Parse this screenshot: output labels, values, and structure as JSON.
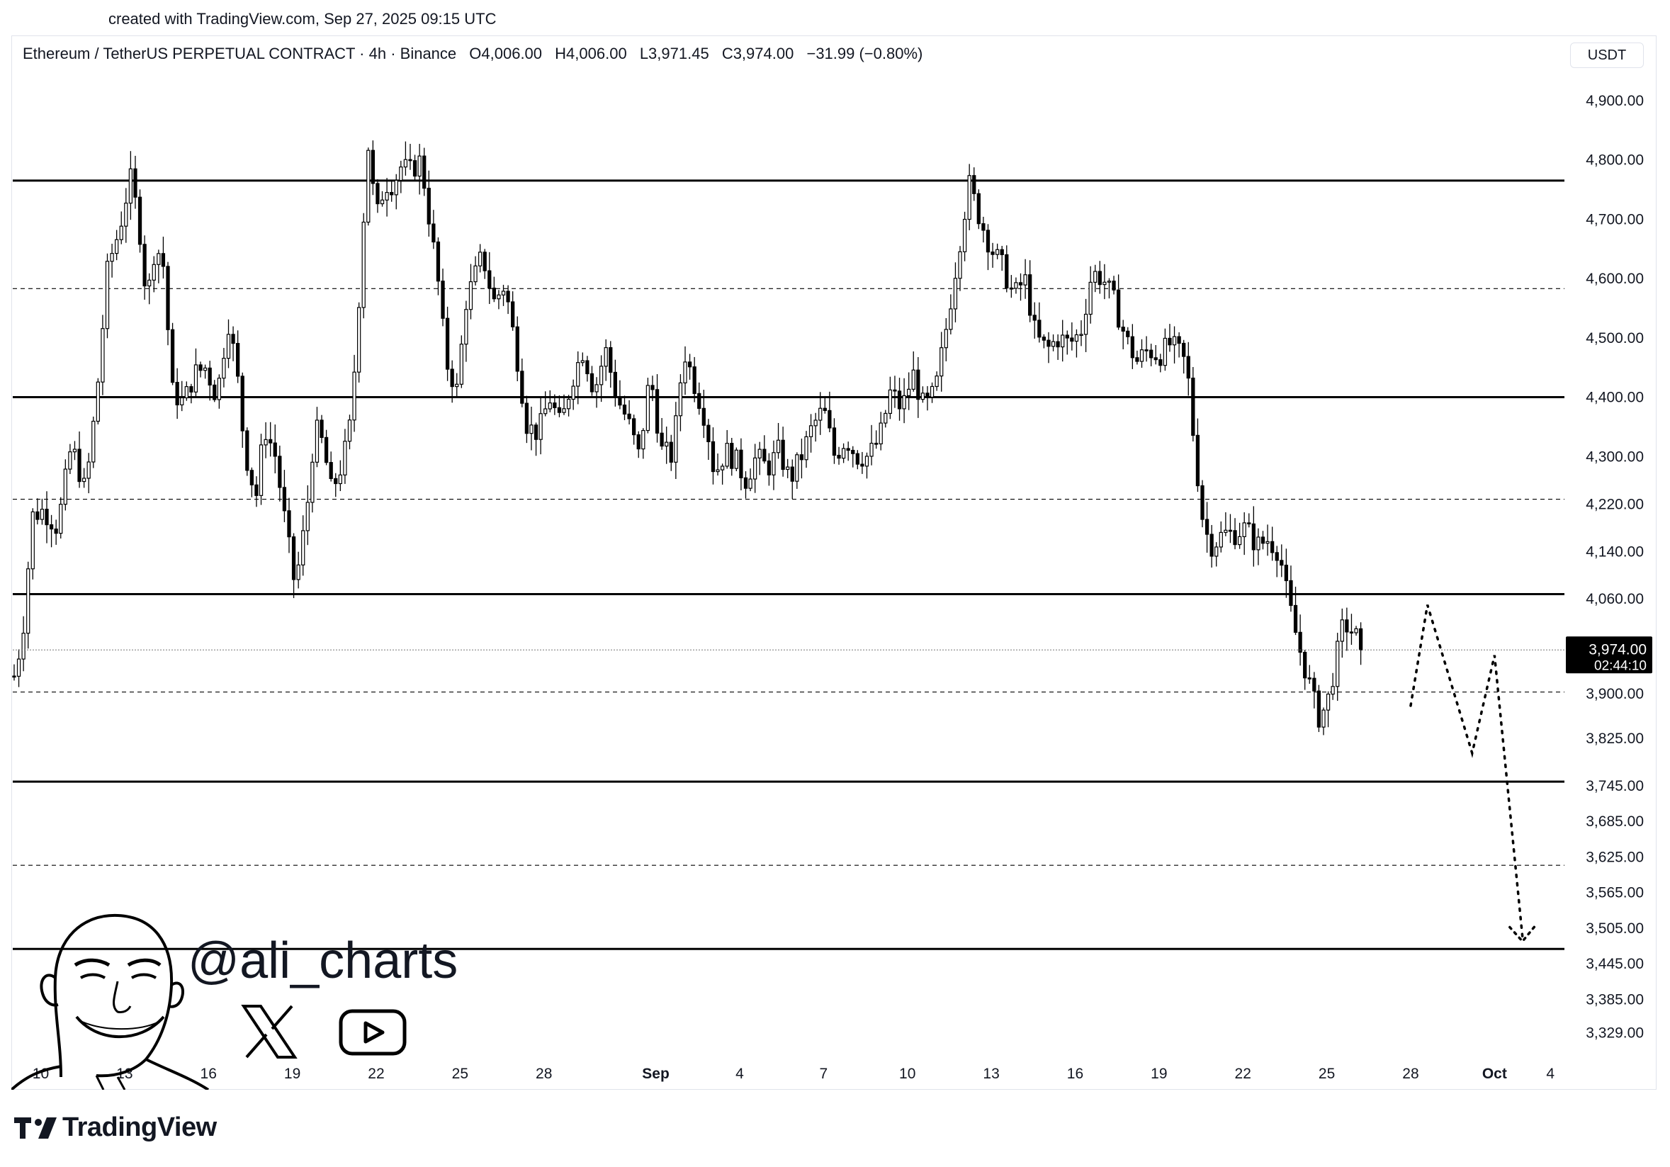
{
  "created_text": "created with TradingView.com, Sep 27, 2025 09:15 UTC",
  "header": {
    "symbol": "Ethereum / TetherUS PERPETUAL CONTRACT · 4h · Binance",
    "open": "O4,006.00",
    "high": "H4,006.00",
    "low": "L3,971.45",
    "close": "C3,974.00",
    "change": "−31.99 (−0.80%)"
  },
  "currency": "USDT",
  "brand": "TradingView",
  "social": {
    "handle": "@ali_charts",
    "icons": [
      "x-icon",
      "youtube-icon"
    ]
  },
  "colors": {
    "candle": "#000000",
    "bull_body": "#ffffff",
    "price_tag_bg": "#000000",
    "price_tag_text": "#ffffff"
  },
  "chart_data": {
    "type": "candlestick",
    "title": "",
    "symbol": "ETHUSDT.P",
    "interval": "4h",
    "ylim": [
      3290,
      5000
    ],
    "y_ticks": [
      {
        "value": 4900,
        "label": "4,900.00"
      },
      {
        "value": 4800,
        "label": "4,800.00"
      },
      {
        "value": 4700,
        "label": "4,700.00"
      },
      {
        "value": 4600,
        "label": "4,600.00"
      },
      {
        "value": 4500,
        "label": "4,500.00"
      },
      {
        "value": 4400,
        "label": "4,400.00"
      },
      {
        "value": 4300,
        "label": "4,300.00"
      },
      {
        "value": 4220,
        "label": "4,220.00"
      },
      {
        "value": 4140,
        "label": "4,140.00"
      },
      {
        "value": 4060,
        "label": "4,060.00"
      },
      {
        "value": 3900,
        "label": "3,900.00"
      },
      {
        "value": 3825,
        "label": "3,825.00"
      },
      {
        "value": 3745,
        "label": "3,745.00"
      },
      {
        "value": 3685,
        "label": "3,685.00"
      },
      {
        "value": 3625,
        "label": "3,625.00"
      },
      {
        "value": 3565,
        "label": "3,565.00"
      },
      {
        "value": 3505,
        "label": "3,505.00"
      },
      {
        "value": 3445,
        "label": "3,445.00"
      },
      {
        "value": 3385,
        "label": "3,385.00"
      },
      {
        "value": 3329,
        "label": "3,329.00"
      }
    ],
    "x_ticks": [
      {
        "day": 10,
        "label": "10",
        "bold": false
      },
      {
        "day": 13,
        "label": "13",
        "bold": false
      },
      {
        "day": 16,
        "label": "16",
        "bold": false
      },
      {
        "day": 19,
        "label": "19",
        "bold": false
      },
      {
        "day": 22,
        "label": "22",
        "bold": false
      },
      {
        "day": 25,
        "label": "25",
        "bold": false
      },
      {
        "day": 28,
        "label": "28",
        "bold": false
      },
      {
        "day": 32,
        "label": "Sep",
        "bold": true
      },
      {
        "day": 35,
        "label": "4",
        "bold": false
      },
      {
        "day": 38,
        "label": "7",
        "bold": false
      },
      {
        "day": 41,
        "label": "10",
        "bold": false
      },
      {
        "day": 44,
        "label": "13",
        "bold": false
      },
      {
        "day": 47,
        "label": "16",
        "bold": false
      },
      {
        "day": 50,
        "label": "19",
        "bold": false
      },
      {
        "day": 53,
        "label": "22",
        "bold": false
      },
      {
        "day": 56,
        "label": "25",
        "bold": false
      },
      {
        "day": 59,
        "label": "28",
        "bold": false
      },
      {
        "day": 62,
        "label": "Oct",
        "bold": true
      },
      {
        "day": 64,
        "label": "4",
        "bold": false
      }
    ],
    "x_axis_note": "day index counted from Aug 1 (Aug 1 = 1, Sep 1 = 32, Oct 1 = 62)",
    "horizontal_levels": [
      {
        "price": 4765,
        "style": "solid"
      },
      {
        "price": 4583,
        "style": "dashed"
      },
      {
        "price": 4400,
        "style": "solid"
      },
      {
        "price": 4228,
        "style": "dashed"
      },
      {
        "price": 4068,
        "style": "solid"
      },
      {
        "price": 3903,
        "style": "dashed"
      },
      {
        "price": 3752,
        "style": "solid"
      },
      {
        "price": 3611,
        "style": "dashed"
      },
      {
        "price": 3470,
        "style": "solid"
      }
    ],
    "last_price": {
      "value": 3974,
      "label": "3,974.00",
      "countdown": "02:44:10"
    },
    "projection_path": [
      {
        "day": 59.0,
        "price": 3880
      },
      {
        "day": 59.6,
        "price": 4050
      },
      {
        "day": 61.2,
        "price": 3800
      },
      {
        "day": 62.0,
        "price": 3965
      },
      {
        "day": 63.0,
        "price": 3490
      }
    ],
    "price_path": [
      [
        9.05,
        3930
      ],
      [
        9.35,
        4000
      ],
      [
        9.7,
        4200
      ],
      [
        10.1,
        4210
      ],
      [
        10.6,
        4180
      ],
      [
        11.1,
        4320
      ],
      [
        11.6,
        4240
      ],
      [
        12.0,
        4400
      ],
      [
        12.4,
        4620
      ],
      [
        12.8,
        4680
      ],
      [
        13.2,
        4770
      ],
      [
        13.5,
        4700
      ],
      [
        13.8,
        4560
      ],
      [
        14.1,
        4660
      ],
      [
        14.4,
        4620
      ],
      [
        14.7,
        4410
      ],
      [
        15.1,
        4390
      ],
      [
        15.5,
        4440
      ],
      [
        15.9,
        4450
      ],
      [
        16.3,
        4400
      ],
      [
        16.7,
        4530
      ],
      [
        17.0,
        4450
      ],
      [
        17.3,
        4310
      ],
      [
        17.7,
        4230
      ],
      [
        18.0,
        4350
      ],
      [
        18.4,
        4300
      ],
      [
        18.8,
        4170
      ],
      [
        19.1,
        4080
      ],
      [
        19.5,
        4200
      ],
      [
        19.8,
        4350
      ],
      [
        20.1,
        4320
      ],
      [
        20.4,
        4240
      ],
      [
        20.8,
        4290
      ],
      [
        21.1,
        4360
      ],
      [
        21.4,
        4580
      ],
      [
        21.7,
        4830
      ],
      [
        22.0,
        4700
      ],
      [
        22.3,
        4760
      ],
      [
        22.6,
        4760
      ],
      [
        22.9,
        4790
      ],
      [
        23.2,
        4780
      ],
      [
        23.6,
        4800
      ],
      [
        23.9,
        4700
      ],
      [
        24.2,
        4600
      ],
      [
        24.5,
        4460
      ],
      [
        24.9,
        4410
      ],
      [
        25.2,
        4560
      ],
      [
        25.5,
        4600
      ],
      [
        25.8,
        4640
      ],
      [
        26.2,
        4560
      ],
      [
        26.6,
        4590
      ],
      [
        27.0,
        4480
      ],
      [
        27.4,
        4350
      ],
      [
        27.8,
        4340
      ],
      [
        28.2,
        4400
      ],
      [
        28.6,
        4350
      ],
      [
        29.0,
        4430
      ],
      [
        29.4,
        4480
      ],
      [
        29.8,
        4410
      ],
      [
        30.2,
        4480
      ],
      [
        30.6,
        4400
      ],
      [
        31.0,
        4360
      ],
      [
        31.4,
        4300
      ],
      [
        31.8,
        4440
      ],
      [
        32.2,
        4310
      ],
      [
        32.6,
        4300
      ],
      [
        33.0,
        4480
      ],
      [
        33.4,
        4420
      ],
      [
        33.8,
        4360
      ],
      [
        34.1,
        4270
      ],
      [
        34.5,
        4310
      ],
      [
        34.9,
        4290
      ],
      [
        35.2,
        4260
      ],
      [
        35.6,
        4300
      ],
      [
        36.0,
        4280
      ],
      [
        36.4,
        4310
      ],
      [
        36.8,
        4260
      ],
      [
        37.2,
        4300
      ],
      [
        37.6,
        4350
      ],
      [
        38.0,
        4380
      ],
      [
        38.4,
        4300
      ],
      [
        38.8,
        4330
      ],
      [
        39.2,
        4300
      ],
      [
        39.6,
        4300
      ],
      [
        40.0,
        4330
      ],
      [
        40.4,
        4410
      ],
      [
        40.8,
        4380
      ],
      [
        41.2,
        4440
      ],
      [
        41.6,
        4380
      ],
      [
        42.0,
        4410
      ],
      [
        42.4,
        4520
      ],
      [
        42.8,
        4640
      ],
      [
        43.2,
        4760
      ],
      [
        43.6,
        4700
      ],
      [
        44.0,
        4650
      ],
      [
        44.4,
        4620
      ],
      [
        44.8,
        4570
      ],
      [
        45.2,
        4600
      ],
      [
        45.6,
        4500
      ],
      [
        46.0,
        4480
      ],
      [
        46.4,
        4500
      ],
      [
        46.8,
        4490
      ],
      [
        47.2,
        4510
      ],
      [
        47.6,
        4610
      ],
      [
        48.0,
        4600
      ],
      [
        48.4,
        4560
      ],
      [
        48.8,
        4500
      ],
      [
        49.2,
        4460
      ],
      [
        49.6,
        4480
      ],
      [
        50.0,
        4470
      ],
      [
        50.4,
        4490
      ],
      [
        50.8,
        4470
      ],
      [
        51.0,
        4450
      ],
      [
        51.3,
        4300
      ],
      [
        51.6,
        4180
      ],
      [
        51.9,
        4150
      ],
      [
        52.3,
        4170
      ],
      [
        52.7,
        4170
      ],
      [
        53.1,
        4180
      ],
      [
        53.5,
        4150
      ],
      [
        53.9,
        4160
      ],
      [
        54.3,
        4140
      ],
      [
        54.6,
        4060
      ],
      [
        55.0,
        3980
      ],
      [
        55.3,
        3930
      ],
      [
        55.7,
        3860
      ],
      [
        56.0,
        3880
      ],
      [
        56.3,
        3950
      ],
      [
        56.6,
        4020
      ],
      [
        57.0,
        4000
      ],
      [
        57.3,
        3974
      ]
    ]
  }
}
